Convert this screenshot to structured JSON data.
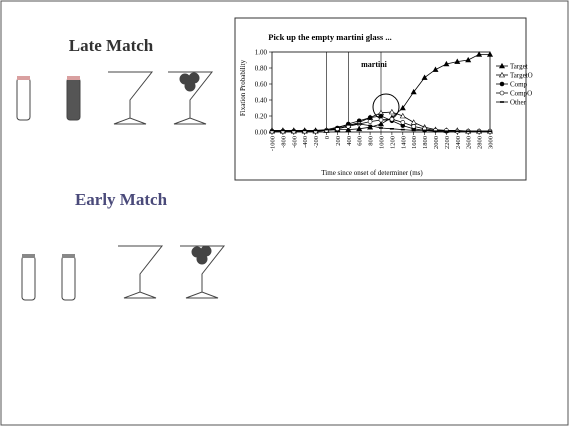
{
  "slide": {
    "headings": [
      "Late Match",
      "Early Match"
    ]
  },
  "chart_data": {
    "type": "line",
    "title": "Pick up   the empty martini glass ...",
    "annotations": [
      "martini"
    ],
    "xlabel": "Time since onset of determiner (ms)",
    "ylabel": "Fixation Probability",
    "x": [
      -1000,
      -800,
      -600,
      -400,
      -200,
      0,
      200,
      400,
      600,
      800,
      1000,
      1200,
      1400,
      1600,
      1800,
      2000,
      2200,
      2400,
      2600,
      2800,
      3000
    ],
    "xlim": [
      -1000,
      3000
    ],
    "xticks": [
      -1000,
      -800,
      -600,
      -400,
      -200,
      0,
      200,
      400,
      600,
      800,
      1000,
      1200,
      1400,
      1600,
      1800,
      2000,
      2200,
      2400,
      2600,
      2800,
      3000
    ],
    "ylim": [
      0,
      1
    ],
    "yticks": [
      {
        "value": 0,
        "label": "0.00"
      },
      {
        "value": 0.2,
        "label": "0.20"
      },
      {
        "value": 0.4,
        "label": "0.40"
      },
      {
        "value": 0.6,
        "label": "0.60"
      },
      {
        "value": 0.8,
        "label": "0.80"
      },
      {
        "value": 1,
        "label": "1.00"
      }
    ],
    "vlines": [
      0,
      400,
      1000
    ],
    "legend": "right",
    "series": [
      {
        "name": "Target",
        "color": "#000000",
        "marker": "filled-triangle",
        "values": [
          0.02,
          0.02,
          0.02,
          0.02,
          0.02,
          0.02,
          0.03,
          0.03,
          0.04,
          0.06,
          0.1,
          0.18,
          0.3,
          0.5,
          0.68,
          0.78,
          0.85,
          0.88,
          0.9,
          0.97,
          0.97
        ]
      },
      {
        "name": "TargetO",
        "color": "#000000",
        "marker": "open-triangle",
        "values": [
          0.01,
          0.01,
          0.01,
          0.01,
          0.01,
          0.02,
          0.04,
          0.08,
          0.12,
          0.18,
          0.24,
          0.25,
          0.2,
          0.12,
          0.06,
          0.03,
          0.02,
          0.02,
          0.01,
          0.01,
          0.01
        ]
      },
      {
        "name": "Comp",
        "color": "#000000",
        "marker": "filled-circle",
        "values": [
          0.01,
          0.01,
          0.01,
          0.01,
          0.01,
          0.02,
          0.05,
          0.1,
          0.14,
          0.18,
          0.2,
          0.14,
          0.08,
          0.04,
          0.02,
          0.02,
          0.01,
          0.01,
          0.01,
          0.01,
          0.01
        ]
      },
      {
        "name": "CompO",
        "color": "#000000",
        "marker": "open-circle",
        "values": [
          0.01,
          0.01,
          0.01,
          0.01,
          0.01,
          0.02,
          0.04,
          0.07,
          0.1,
          0.13,
          0.15,
          0.16,
          0.12,
          0.07,
          0.04,
          0.02,
          0.02,
          0.01,
          0.01,
          0.01,
          0.01
        ]
      },
      {
        "name": "Other",
        "color": "#000000",
        "marker": "dash",
        "values": [
          0.02,
          0.02,
          0.02,
          0.02,
          0.02,
          0.03,
          0.06,
          0.09,
          0.1,
          0.08,
          0.05,
          0.04,
          0.03,
          0.02,
          0.02,
          0.01,
          0.01,
          0.01,
          0.01,
          0.01,
          0.01
        ]
      }
    ]
  }
}
